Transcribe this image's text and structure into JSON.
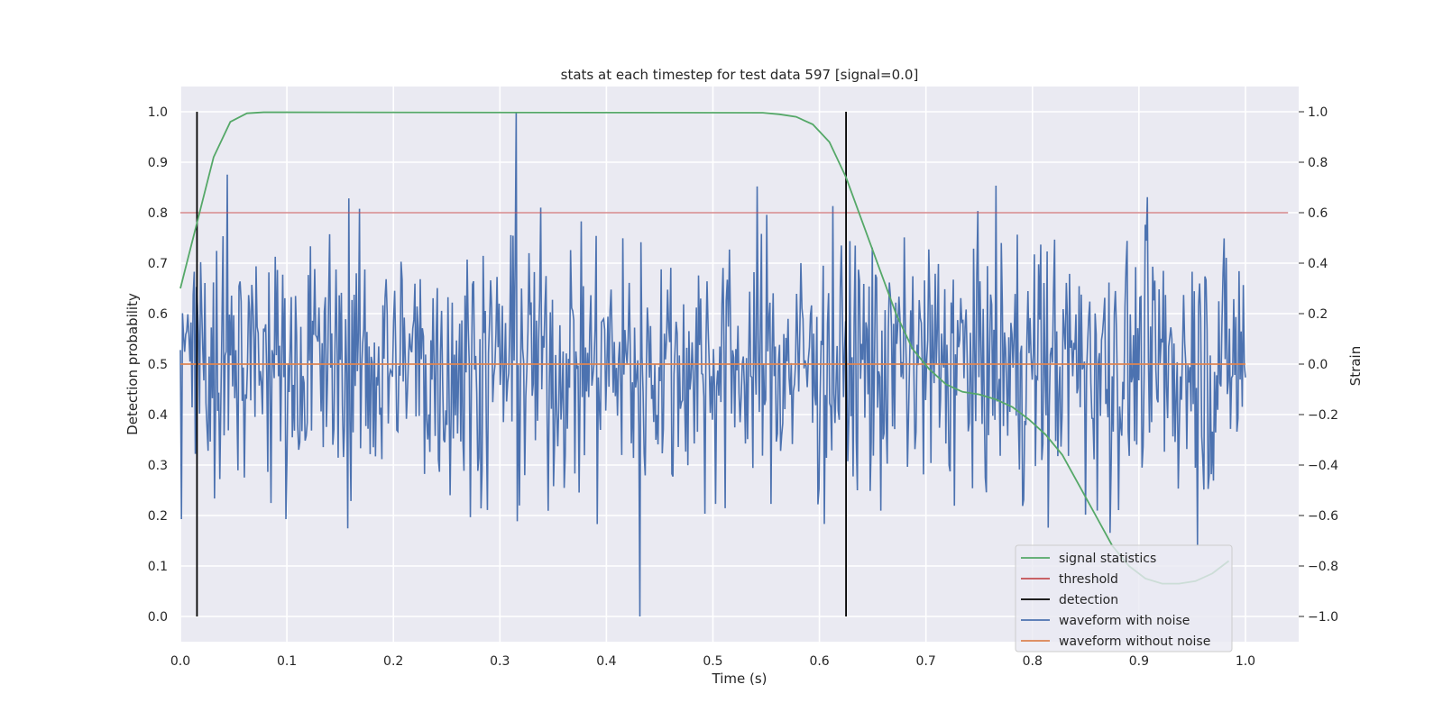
{
  "chart_data": {
    "type": "line",
    "title": "stats at each timestep for test data 597 [signal=0.0]",
    "xlabel": "Time (s)",
    "ylabel": "Detection probability",
    "y2label": "Strain",
    "xlim": [
      0.0,
      1.05
    ],
    "ylim": [
      -0.05,
      1.05
    ],
    "y2lim": [
      -1.1,
      1.1
    ],
    "xticks": [
      "0.0",
      "0.1",
      "0.2",
      "0.3",
      "0.4",
      "0.5",
      "0.6",
      "0.7",
      "0.8",
      "0.9",
      "1.0"
    ],
    "yticks": [
      "0.0",
      "0.1",
      "0.2",
      "0.3",
      "0.4",
      "0.5",
      "0.6",
      "0.7",
      "0.8",
      "0.9",
      "1.0"
    ],
    "y2ticks": [
      "−1.0",
      "−0.8",
      "−0.6",
      "−0.4",
      "−0.2",
      "0.0",
      "0.2",
      "0.4",
      "0.6",
      "0.8",
      "1.0"
    ],
    "grid": true,
    "legend_position": "lower-right",
    "series": [
      {
        "name": "signal statistics",
        "axis": "left",
        "color": "#55a868",
        "x": [
          0.0,
          0.0156,
          0.0312,
          0.0469,
          0.0625,
          0.0781,
          0.0938,
          0.5469,
          0.5625,
          0.5781,
          0.5938,
          0.6094,
          0.625,
          0.6406,
          0.6562,
          0.6719,
          0.6875,
          0.7031,
          0.7188,
          0.7344,
          0.75,
          0.7656,
          0.7812,
          0.7969,
          0.8125,
          0.8281,
          0.8438,
          0.8594,
          0.875,
          0.8906,
          0.9062,
          0.9219,
          0.9375,
          0.9531,
          0.9688,
          0.9844
        ],
        "y": [
          0.65,
          0.78,
          0.91,
          0.98,
          0.997,
          0.999,
          0.999,
          0.998,
          0.995,
          0.99,
          0.975,
          0.94,
          0.87,
          0.78,
          0.69,
          0.6,
          0.53,
          0.49,
          0.46,
          0.445,
          0.44,
          0.43,
          0.415,
          0.39,
          0.36,
          0.32,
          0.26,
          0.2,
          0.14,
          0.1,
          0.075,
          0.065,
          0.065,
          0.07,
          0.085,
          0.11
        ]
      },
      {
        "name": "threshold",
        "axis": "left",
        "color": "#c44e52",
        "x": [
          0.0,
          1.04
        ],
        "y": [
          0.8,
          0.8
        ]
      },
      {
        "name": "detection",
        "axis": "left",
        "color": "#000000",
        "x": [
          0.0156,
          0.625
        ],
        "y_range": [
          0.0,
          1.0
        ]
      },
      {
        "name": "waveform with noise",
        "axis": "right",
        "color": "#4c72b0",
        "x_range": [
          0.0,
          1.0
        ],
        "n_points": 1000,
        "y_range": [
          -1.0,
          1.0
        ],
        "peaks": [
          {
            "x": 0.3154,
            "y": 1.0
          },
          {
            "x": 0.4316,
            "y": -1.0
          }
        ]
      },
      {
        "name": "waveform without noise",
        "axis": "right",
        "color": "#dd8452",
        "x": [
          0.0,
          1.0
        ],
        "y": [
          0.0,
          0.0
        ]
      }
    ]
  }
}
